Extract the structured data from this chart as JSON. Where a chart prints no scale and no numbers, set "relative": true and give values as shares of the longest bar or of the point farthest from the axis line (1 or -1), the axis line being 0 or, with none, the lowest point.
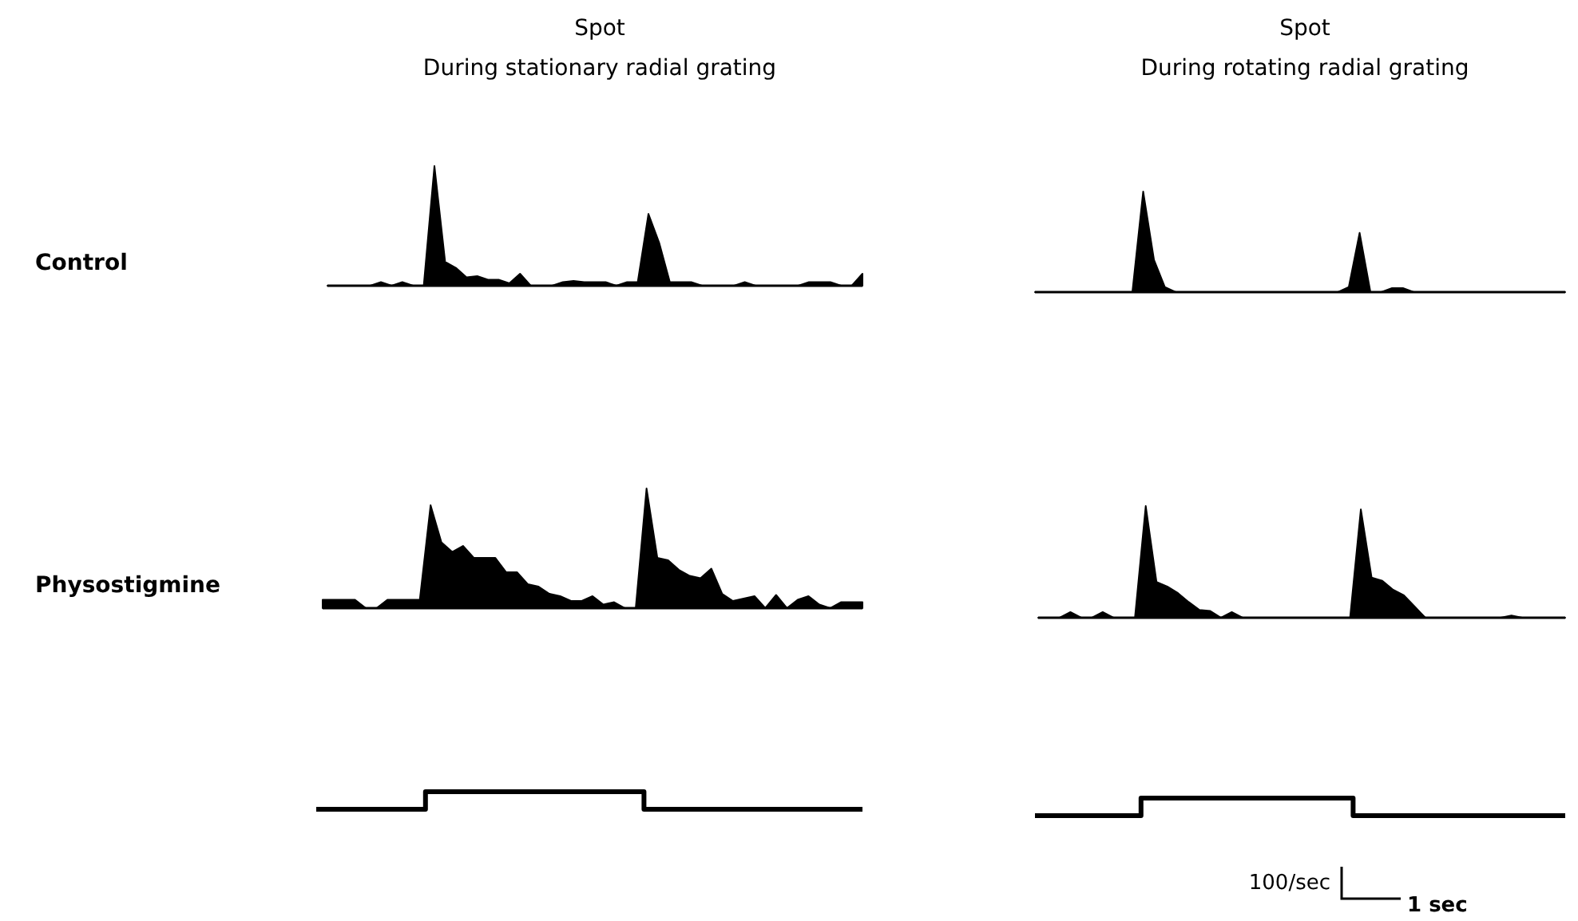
{
  "chart_data": [
    {
      "type": "area",
      "title": "Spot",
      "subtitle": "During stationary radial grating",
      "ylabel": "Control",
      "relative": true,
      "color": "#000000",
      "categories": [
        null,
        null,
        null,
        null,
        null,
        null,
        null,
        null,
        null,
        null,
        null,
        null,
        null,
        null,
        null,
        null,
        null,
        null,
        null,
        null,
        null,
        null,
        null,
        null,
        null,
        null,
        null,
        null,
        null,
        null,
        null,
        null,
        null,
        null,
        null,
        null,
        null,
        null,
        null,
        null,
        null,
        null,
        null,
        null,
        null,
        null,
        null,
        null,
        null,
        null,
        null
      ],
      "values": [
        0,
        0,
        0,
        0,
        0,
        0.03,
        0,
        0.03,
        0,
        0,
        1,
        0.2,
        0.15,
        0.07,
        0.08,
        0.05,
        0.05,
        0.02,
        0.1,
        0,
        0,
        0,
        0.03,
        0.04,
        0.03,
        0.03,
        0.03,
        0,
        0.03,
        0.03,
        0.6,
        0.36,
        0.03,
        0.03,
        0.03,
        0,
        0,
        0,
        0,
        0.03,
        0,
        0,
        0,
        0,
        0,
        0.03,
        0.03,
        0.03,
        0,
        0,
        0.1
      ]
    },
    {
      "type": "area",
      "title": "Spot",
      "subtitle": "During rotating radial grating",
      "relative": true,
      "color": "#000000",
      "categories": [
        null,
        null,
        null,
        null,
        null,
        null,
        null,
        null,
        null,
        null,
        null,
        null,
        null,
        null,
        null,
        null,
        null,
        null,
        null,
        null,
        null,
        null,
        null,
        null,
        null,
        null,
        null,
        null,
        null,
        null,
        null,
        null,
        null,
        null,
        null,
        null,
        null,
        null,
        null,
        null,
        null,
        null,
        null,
        null,
        null,
        null,
        null,
        null,
        null,
        null
      ],
      "values": [
        0,
        0,
        0,
        0,
        0,
        0,
        0,
        0,
        0,
        0,
        1,
        0.32,
        0.05,
        0,
        0,
        0,
        0,
        0,
        0,
        0,
        0,
        0,
        0,
        0,
        0,
        0,
        0,
        0,
        0,
        0.05,
        0.59,
        0,
        0,
        0.04,
        0.04,
        0,
        0,
        0,
        0,
        0,
        0,
        0,
        0,
        0,
        0,
        0,
        0,
        0,
        0,
        0
      ]
    },
    {
      "type": "area",
      "ylabel": "Physostigmine",
      "relative": true,
      "color": "#000000",
      "categories": [
        null,
        null,
        null,
        null,
        null,
        null,
        null,
        null,
        null,
        null,
        null,
        null,
        null,
        null,
        null,
        null,
        null,
        null,
        null,
        null,
        null,
        null,
        null,
        null,
        null,
        null,
        null,
        null,
        null,
        null,
        null,
        null,
        null,
        null,
        null,
        null,
        null,
        null,
        null,
        null,
        null,
        null,
        null,
        null,
        null,
        null,
        null,
        null,
        null,
        null,
        null
      ],
      "values": [
        0.07,
        0.07,
        0.07,
        0.07,
        0,
        0,
        0.07,
        0.07,
        0.07,
        0.07,
        0.86,
        0.55,
        0.47,
        0.52,
        0.42,
        0.42,
        0.42,
        0.3,
        0.3,
        0.2,
        0.18,
        0.12,
        0.1,
        0.06,
        0.06,
        0.1,
        0.03,
        0.05,
        0,
        0,
        1,
        0.42,
        0.4,
        0.32,
        0.27,
        0.25,
        0.33,
        0.12,
        0.06,
        0.08,
        0.1,
        0,
        0.11,
        0,
        0.07,
        0.1,
        0.03,
        0,
        0.05,
        0.05,
        0.05
      ]
    },
    {
      "type": "area",
      "relative": true,
      "color": "#000000",
      "categories": [
        null,
        null,
        null,
        null,
        null,
        null,
        null,
        null,
        null,
        null,
        null,
        null,
        null,
        null,
        null,
        null,
        null,
        null,
        null,
        null,
        null,
        null,
        null,
        null,
        null,
        null,
        null,
        null,
        null,
        null,
        null,
        null,
        null,
        null,
        null,
        null,
        null,
        null,
        null,
        null,
        null,
        null,
        null,
        null,
        null,
        null,
        null,
        null,
        null,
        null
      ],
      "values": [
        0,
        0,
        0,
        0.05,
        0,
        0,
        0.05,
        0,
        0,
        0,
        1,
        0.32,
        0.28,
        0.22,
        0.14,
        0.07,
        0.06,
        0,
        0.05,
        0,
        0,
        0,
        0,
        0,
        0,
        0,
        0,
        0,
        0,
        0,
        0.97,
        0.36,
        0.33,
        0.25,
        0.2,
        0.1,
        0,
        0,
        0,
        0,
        0,
        0,
        0,
        0,
        0.02,
        0,
        0,
        0,
        0,
        0
      ]
    },
    {
      "type": "step",
      "relative": true,
      "color": "#000000",
      "categories": [
        null,
        null,
        null,
        null,
        null,
        null
      ],
      "values": [
        0,
        1,
        1,
        0,
        0,
        0
      ]
    },
    {
      "type": "step",
      "relative": true,
      "color": "#000000",
      "categories": [
        null,
        null,
        null,
        null,
        null,
        null
      ],
      "values": [
        0,
        1,
        1,
        0,
        0,
        0
      ],
      "annotations": [
        "100/sec",
        "1 sec"
      ]
    }
  ]
}
